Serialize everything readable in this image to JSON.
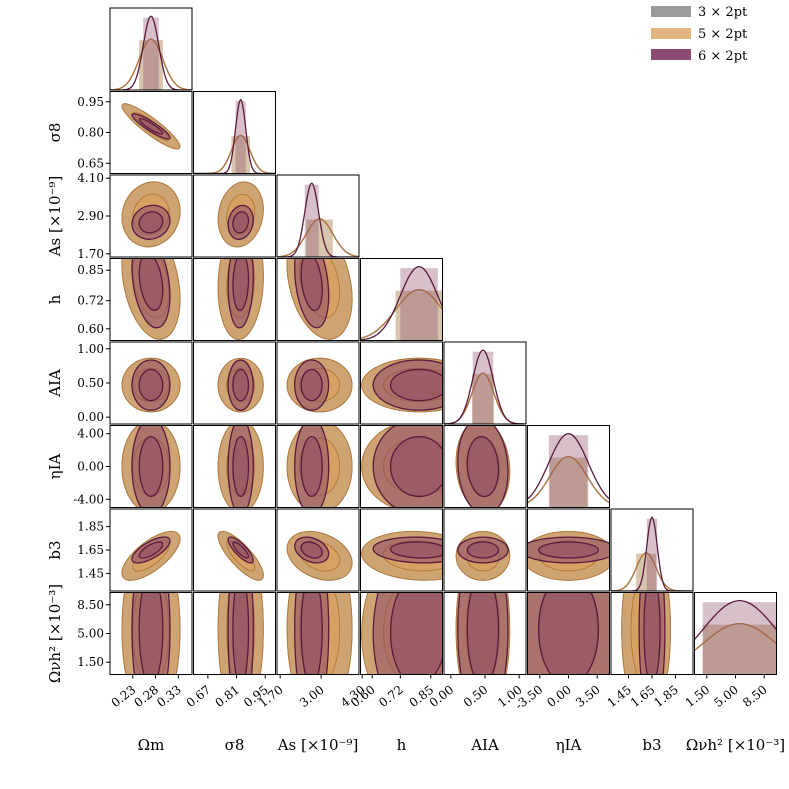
{
  "chart_data": {
    "type": "corner",
    "series": [
      {
        "name": "3 × 2pt",
        "color": "#8c8c8c"
      },
      {
        "name": "5 × 2pt",
        "color": "#d9a25f"
      },
      {
        "name": "6 × 2pt",
        "color": "#7e2a57"
      }
    ],
    "legend_position": "top-right",
    "parameters": [
      {
        "label": "Ωm",
        "range": [
          0.18,
          0.36
        ],
        "ticks": [
          "0.23",
          "0.28",
          "0.33"
        ],
        "peak": [
          0.27,
          0.27,
          0.27
        ],
        "sigma": [
          0.026,
          0.026,
          0.017
        ]
      },
      {
        "label": "σ8",
        "range": [
          0.6,
          1.0
        ],
        "ticks": [
          "0.67",
          "0.81",
          "0.95"
        ],
        "peak": [
          0.83,
          0.83,
          0.83
        ],
        "sigma": [
          0.045,
          0.045,
          0.025
        ]
      },
      {
        "label": "As [×10⁻⁹]",
        "range": [
          1.6,
          4.2
        ],
        "ticks": [
          "1.70",
          "3.00",
          "4.30"
        ],
        "peak": [
          2.95,
          2.95,
          2.7
        ],
        "sigma": [
          0.42,
          0.42,
          0.22
        ]
      },
      {
        "label": "h",
        "range": [
          0.55,
          0.9
        ],
        "ticks": [
          "0.60",
          "0.72",
          "0.85"
        ],
        "peak": [
          0.8,
          0.8,
          0.8
        ],
        "sigma": [
          0.1,
          0.1,
          0.08
        ]
      },
      {
        "label": "AIA",
        "range": [
          -0.1,
          1.1
        ],
        "ticks": [
          "0.00",
          "0.50",
          "1.00"
        ],
        "peak": [
          0.47,
          0.47,
          0.47
        ],
        "sigma": [
          0.16,
          0.16,
          0.15
        ]
      },
      {
        "label": "ηIA",
        "range": [
          -5.0,
          5.0
        ],
        "ticks": [
          "-3.50",
          "0.00",
          "3.50"
        ],
        "peak": [
          0.0,
          0.0,
          0.0
        ],
        "sigma": [
          2.3,
          2.3,
          2.4
        ]
      },
      {
        "label": "b3",
        "range": [
          1.3,
          2.0
        ],
        "ticks": [
          "1.45",
          "1.65",
          "1.85"
        ],
        "peak": [
          1.6,
          1.6,
          1.65
        ],
        "sigma": [
          0.085,
          0.085,
          0.045
        ]
      },
      {
        "label": "Ωνh² [×10⁻³]",
        "range": [
          0.0,
          10.0
        ],
        "ticks": [
          "1.50",
          "5.00",
          "8.50"
        ],
        "peak": [
          5.5,
          5.5,
          5.5
        ],
        "sigma": [
          4.5,
          4.5,
          4.5
        ]
      }
    ],
    "y_axes": [
      {
        "param": 1,
        "label": "σ8",
        "ticks": [
          "0.95",
          "0.80",
          "0.65"
        ]
      },
      {
        "param": 2,
        "label": "As [×10⁻⁹]",
        "ticks": [
          "4.10",
          "2.90",
          "1.70"
        ]
      },
      {
        "param": 3,
        "label": "h",
        "ticks": [
          "0.85",
          "0.72",
          "0.60"
        ]
      },
      {
        "param": 4,
        "label": "AIA",
        "ticks": [
          "1.00",
          "0.50",
          "0.00"
        ]
      },
      {
        "param": 5,
        "label": "ηIA",
        "ticks": [
          "4.00",
          "0.00",
          "-4.00"
        ]
      },
      {
        "param": 6,
        "label": "b3",
        "ticks": [
          "1.85",
          "1.65",
          "1.45"
        ]
      },
      {
        "param": 7,
        "label": "Ωνh² [×10⁻³]",
        "ticks": [
          "8.50",
          "5.00",
          "1.50"
        ]
      }
    ],
    "correlations": {
      "1,0": -0.9,
      "2,0": 0.1,
      "2,1": 0.15,
      "3,0": -0.3,
      "3,1": 0.1,
      "3,2": -0.3,
      "4,0": 0.0,
      "4,1": 0.0,
      "4,2": 0.0,
      "4,3": 0.0,
      "5,0": 0.0,
      "5,1": 0.0,
      "5,2": 0.0,
      "5,3": 0.0,
      "5,4": -0.1,
      "6,0": 0.7,
      "6,1": -0.8,
      "6,2": -0.3,
      "6,3": -0.1,
      "6,4": 0.0,
      "6,5": 0.0,
      "7,0": 0.0,
      "7,1": 0.0,
      "7,2": 0.0,
      "7,3": 0.05,
      "7,4": 0.0,
      "7,5": 0.0,
      "7,6": 0.0
    }
  }
}
